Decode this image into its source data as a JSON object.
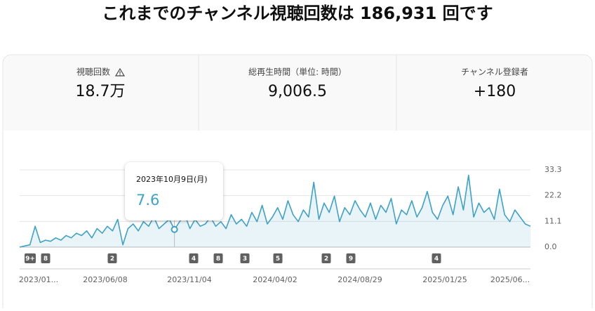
{
  "header": {
    "title": "これまでのチャンネル視聴回数は 186,931 回です"
  },
  "metrics": [
    {
      "label": "視聴回数",
      "value": "18.7万"
    },
    {
      "label": "総再生時間（単位: 時間）",
      "value": "9,006.5"
    },
    {
      "label": "チャンネル登録者",
      "value": "+180"
    }
  ],
  "chart_data": {
    "type": "line",
    "series": [
      {
        "color": "#3ea2c8",
        "values": [
          0,
          0.5,
          1,
          9,
          2,
          3,
          2.5,
          4,
          3,
          5,
          4,
          6,
          5,
          7,
          4,
          8,
          6,
          9,
          7,
          12,
          1,
          8,
          10,
          7,
          11,
          9,
          13,
          8,
          10,
          12,
          7.6,
          11,
          14,
          8,
          12,
          9,
          10,
          13,
          9,
          11,
          8,
          14,
          10,
          12,
          9,
          15,
          11,
          18,
          10,
          13,
          17,
          12,
          20,
          14,
          11,
          16,
          13,
          28,
          12,
          19,
          15,
          22,
          11,
          17,
          14,
          20,
          16,
          13,
          19,
          12,
          18,
          15,
          21,
          10,
          16,
          14,
          20,
          13,
          17,
          24,
          15,
          12,
          18,
          22,
          14,
          26,
          16,
          31,
          13,
          19,
          15,
          17,
          12,
          25,
          14,
          11,
          16,
          13,
          10,
          9
        ]
      }
    ],
    "ylim": [
      0,
      33.3
    ],
    "yticks": [
      {
        "value": 0,
        "label": "0.0"
      },
      11.1,
      22.2,
      33.3
    ],
    "grid": true,
    "x_labels": [
      "2023/01...",
      "2023/06/08",
      "2023/11/04",
      "2024/04/02",
      "2024/08/29",
      "2025/01/25",
      "2025/06..."
    ],
    "events": [
      "9+",
      "8",
      "2",
      "4",
      "8",
      "3",
      "5",
      "2",
      "9",
      "4"
    ],
    "tooltip": {
      "date": "2023年10月9日(月)",
      "value": "7.6"
    }
  }
}
